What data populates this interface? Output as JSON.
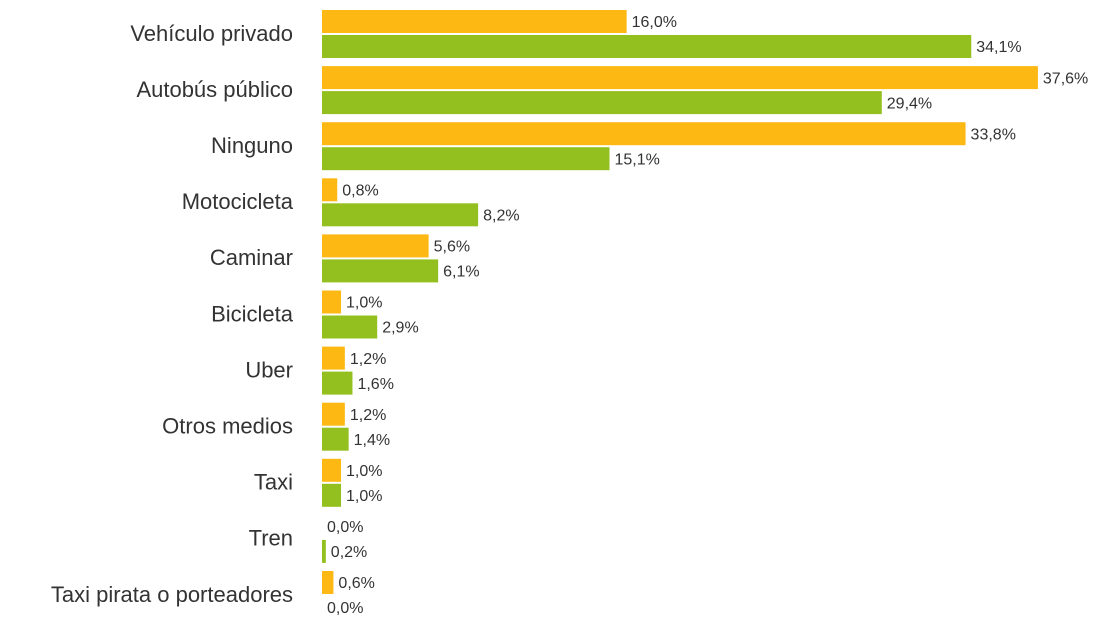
{
  "chart_data": {
    "type": "bar",
    "orientation": "horizontal",
    "categories": [
      "Vehículo privado",
      "Autobús público",
      "Ninguno",
      "Motocicleta",
      "Caminar",
      "Bicicleta",
      "Uber",
      "Otros medios",
      "Taxi",
      "Tren",
      "Taxi pirata o porteadores"
    ],
    "series": [
      {
        "color": "#fdb813",
        "values": [
          16.0,
          37.6,
          33.8,
          0.8,
          5.6,
          1.0,
          1.2,
          1.2,
          1.0,
          0.0,
          0.6
        ],
        "value_labels": [
          "16,0%",
          "37,6%",
          "33,8%",
          "0,8%",
          "5,6%",
          "1,0%",
          "1,2%",
          "1,2%",
          "1,0%",
          "0,0%",
          "0,6%"
        ]
      },
      {
        "color": "#93c01f",
        "values": [
          34.1,
          29.4,
          15.1,
          8.2,
          6.1,
          2.9,
          1.6,
          1.4,
          1.0,
          0.2,
          0.0
        ],
        "value_labels": [
          "34,1%",
          "29,4%",
          "15,1%",
          "8,2%",
          "6,1%",
          "2,9%",
          "1,6%",
          "1,4%",
          "1,0%",
          "0,2%",
          "0,0%"
        ]
      }
    ]
  }
}
